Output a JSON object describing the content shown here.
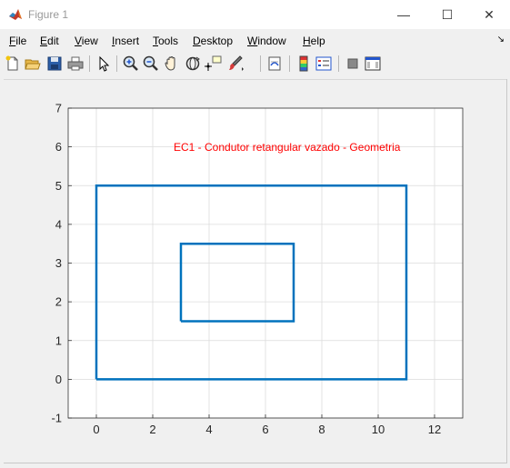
{
  "window": {
    "title": "Figure 1",
    "controls": {
      "minimize": "—",
      "maximize": "☐",
      "close": "✕"
    }
  },
  "menu": [
    {
      "label": "File",
      "mnemonic": "F",
      "rest": "ile"
    },
    {
      "label": "Edit",
      "mnemonic": "E",
      "rest": "dit"
    },
    {
      "label": "View",
      "mnemonic": "V",
      "rest": "iew"
    },
    {
      "label": "Insert",
      "mnemonic": "I",
      "rest": "nsert"
    },
    {
      "label": "Tools",
      "mnemonic": "T",
      "rest": "ools"
    },
    {
      "label": "Desktop",
      "mnemonic": "D",
      "rest": "esktop"
    },
    {
      "label": "Window",
      "mnemonic": "W",
      "rest": "indow"
    },
    {
      "label": "Help",
      "mnemonic": "H",
      "rest": "elp"
    }
  ],
  "toolbar_icons": [
    "new-figure-icon",
    "open-file-icon",
    "save-icon",
    "print-icon",
    "pointer-icon",
    "zoom-in-icon",
    "zoom-out-icon",
    "pan-icon",
    "rotate-3d-icon",
    "data-cursor-icon",
    "brush-icon",
    "link-plot-icon",
    "colorbar-icon",
    "legend-icon",
    "hide-plot-tools-icon",
    "show-plot-tools-icon"
  ],
  "chart_data": {
    "type": "line",
    "annotation": "EC1 - Condutor retangular vazado - Geometria",
    "annotation_color": "#ff0000",
    "series_color": "#0072bd",
    "xlim": [
      -1,
      13
    ],
    "ylim": [
      -1,
      7
    ],
    "xticks": [
      0,
      2,
      4,
      6,
      8,
      10,
      12
    ],
    "yticks": [
      -1,
      0,
      1,
      2,
      3,
      4,
      5,
      6,
      7
    ],
    "grid": true,
    "series": [
      {
        "x": [
          0,
          11,
          11,
          0,
          0
        ],
        "y": [
          0,
          0,
          5,
          5,
          0
        ]
      },
      {
        "x": [
          3,
          7,
          7,
          3,
          3
        ],
        "y": [
          1.5,
          1.5,
          3.5,
          3.5,
          1.5
        ]
      }
    ]
  }
}
